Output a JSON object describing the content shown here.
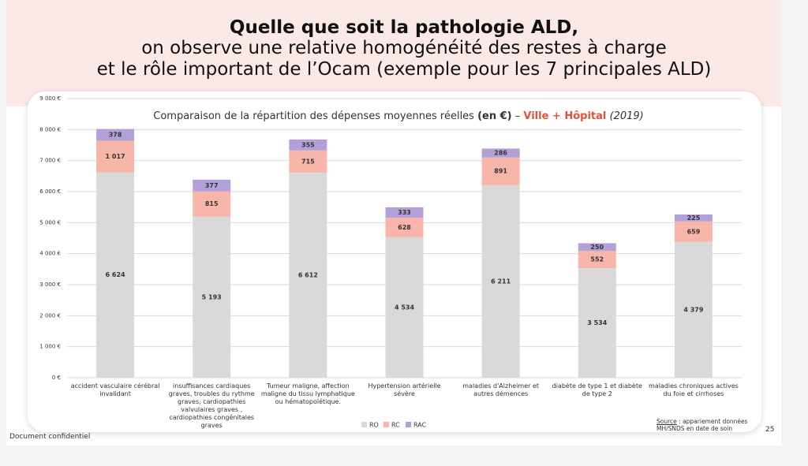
{
  "title_lines": [
    "Quelle que soit la pathologie ALD,",
    "on observe une relative homogénéité des restes à charge",
    "et le rôle important de l’Ocam (exemple pour les 7 principales ALD)"
  ],
  "chart_data": {
    "type": "stacked_bar",
    "title_parts": [
      "Comparaison de la répartition des dépenses moyennes réelles ",
      "(en €)",
      " – ",
      "Ville + Hôpital",
      " (2019)"
    ],
    "categories": [
      "accident vasculaire cérébral invalidant",
      "insuffisances cardiaques graves, troubles du rythme graves, cardiopathies valvulaires graves , cardiopathies congénitales graves",
      "Tumeur maligne, affection maligne du tissu lymphatique ou hématopoïétique.",
      "Hypertension artérielle sévère",
      "maladies d'Alzheimer et autres démences",
      "diabète de type 1 et diabète de type 2",
      "maladies chroniques actives du foie et cirrhoses"
    ],
    "series": [
      {
        "name": "RO",
        "color": "#d9d9d9",
        "values": [
          6624,
          5193,
          6612,
          4534,
          6211,
          3534,
          4379
        ],
        "value_labels": [
          "6 624",
          "5 193",
          "6 612",
          "4 534",
          "6 211",
          "3 534",
          "4 379"
        ]
      },
      {
        "name": "RC",
        "color": "#f8b6aa",
        "values": [
          1017,
          815,
          715,
          628,
          891,
          552,
          659
        ],
        "value_labels": [
          "1 017",
          "815",
          "715",
          "628",
          "891",
          "552",
          "659"
        ]
      },
      {
        "name": "RAC",
        "color": "#b4a0d8",
        "values": [
          378,
          377,
          355,
          333,
          286,
          250,
          225
        ],
        "value_labels": [
          "378",
          "377",
          "355",
          "333",
          "286",
          "250",
          "225"
        ]
      }
    ],
    "ylim": [
      0,
      9000
    ],
    "yticks": [
      {
        "value": 0,
        "label": "0 €"
      },
      {
        "value": 1000,
        "label": "1 000 €"
      },
      {
        "value": 2000,
        "label": "2 000 €"
      },
      {
        "value": 3000,
        "label": "3 000 €"
      },
      {
        "value": 4000,
        "label": "4 000 €"
      },
      {
        "value": 5000,
        "label": "5 000 €"
      },
      {
        "value": 6000,
        "label": "6 000 €"
      },
      {
        "value": 7000,
        "label": "7 000 €"
      },
      {
        "value": 8000,
        "label": "8 000 €"
      },
      {
        "value": 9000,
        "label": "9 000 €"
      }
    ],
    "grid": true,
    "legend": "bottom"
  },
  "source": {
    "label": "Source",
    "text": ": appariement données MH/SNDS en date de soin"
  },
  "footer": "Document confidentiel",
  "page_number": "25"
}
